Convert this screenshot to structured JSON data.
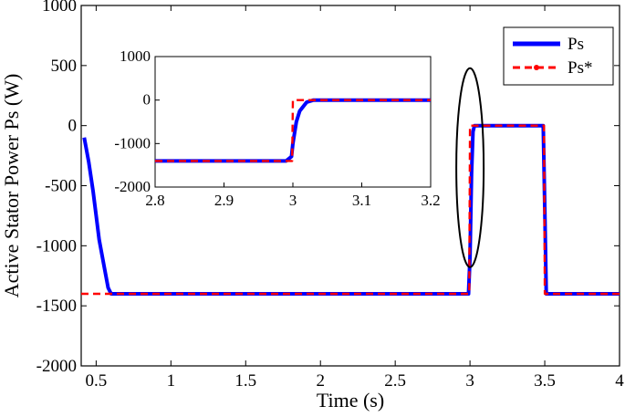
{
  "chart_data": [
    {
      "type": "line",
      "xlabel": "Time (s)",
      "ylabel": "Active Stator Power Ps (W)",
      "xlim": [
        0.4,
        4
      ],
      "ylim": [
        -2000,
        1000
      ],
      "xticks": [
        "0.5",
        "1",
        "1.5",
        "2",
        "2.5",
        "3",
        "3.5",
        "4"
      ],
      "xtick_values": [
        0.5,
        1,
        1.5,
        2,
        2.5,
        3,
        3.5,
        4
      ],
      "yticks": [
        "1000",
        "500",
        "0",
        "-500",
        "-1000",
        "-1500",
        "-2000"
      ],
      "ytick_values": [
        1000,
        500,
        0,
        -500,
        -1000,
        -1500,
        -2000
      ],
      "grid": false,
      "legend_position": "top-right",
      "series": [
        {
          "name": "Ps",
          "color": "#0000ff",
          "style": "solid",
          "x": [
            0.42,
            0.45,
            0.48,
            0.5,
            0.52,
            0.55,
            0.58,
            0.6,
            1,
            1.5,
            2,
            2.5,
            2.99,
            3.0,
            3.01,
            3.02,
            3.03,
            3.1,
            3.3,
            3.49,
            3.5,
            3.51,
            3.6,
            4.0
          ],
          "y": [
            -100,
            -300,
            -550,
            -750,
            -950,
            -1150,
            -1350,
            -1400,
            -1400,
            -1400,
            -1400,
            -1400,
            -1400,
            -1100,
            -400,
            -50,
            0,
            0,
            0,
            0,
            -700,
            -1400,
            -1400,
            -1400
          ]
        },
        {
          "name": "Ps*",
          "color": "#ff0000",
          "style": "dashed",
          "x": [
            0.4,
            2.995,
            3.0,
            3.495,
            3.5,
            4.0
          ],
          "y": [
            -1400,
            -1400,
            0,
            0,
            -1400,
            -1400
          ]
        }
      ],
      "annotations": [
        {
          "type": "ellipse",
          "x": 3.0,
          "y": -350
        }
      ]
    },
    {
      "type": "line",
      "role": "inset",
      "xlim": [
        2.8,
        3.2
      ],
      "ylim": [
        -2000,
        1000
      ],
      "xticks": [
        "2.8",
        "2.9",
        "3",
        "3.1",
        "3.2"
      ],
      "xtick_values": [
        2.8,
        2.9,
        3,
        3.1,
        3.2
      ],
      "yticks": [
        "1000",
        "0",
        "-1000",
        "-2000"
      ],
      "ytick_values": [
        1000,
        0,
        -1000,
        -2000
      ],
      "series": [
        {
          "name": "Ps",
          "color": "#0000ff",
          "x": [
            2.8,
            2.99,
            2.998,
            3.0,
            3.005,
            3.01,
            3.02,
            3.03,
            3.2
          ],
          "y": [
            -1400,
            -1400,
            -1300,
            -1000,
            -500,
            -250,
            -50,
            0,
            0
          ]
        },
        {
          "name": "Ps*",
          "color": "#ff0000",
          "x": [
            2.8,
            2.999,
            3.0,
            3.2
          ],
          "y": [
            -1400,
            -1400,
            0,
            0
          ]
        }
      ]
    }
  ]
}
